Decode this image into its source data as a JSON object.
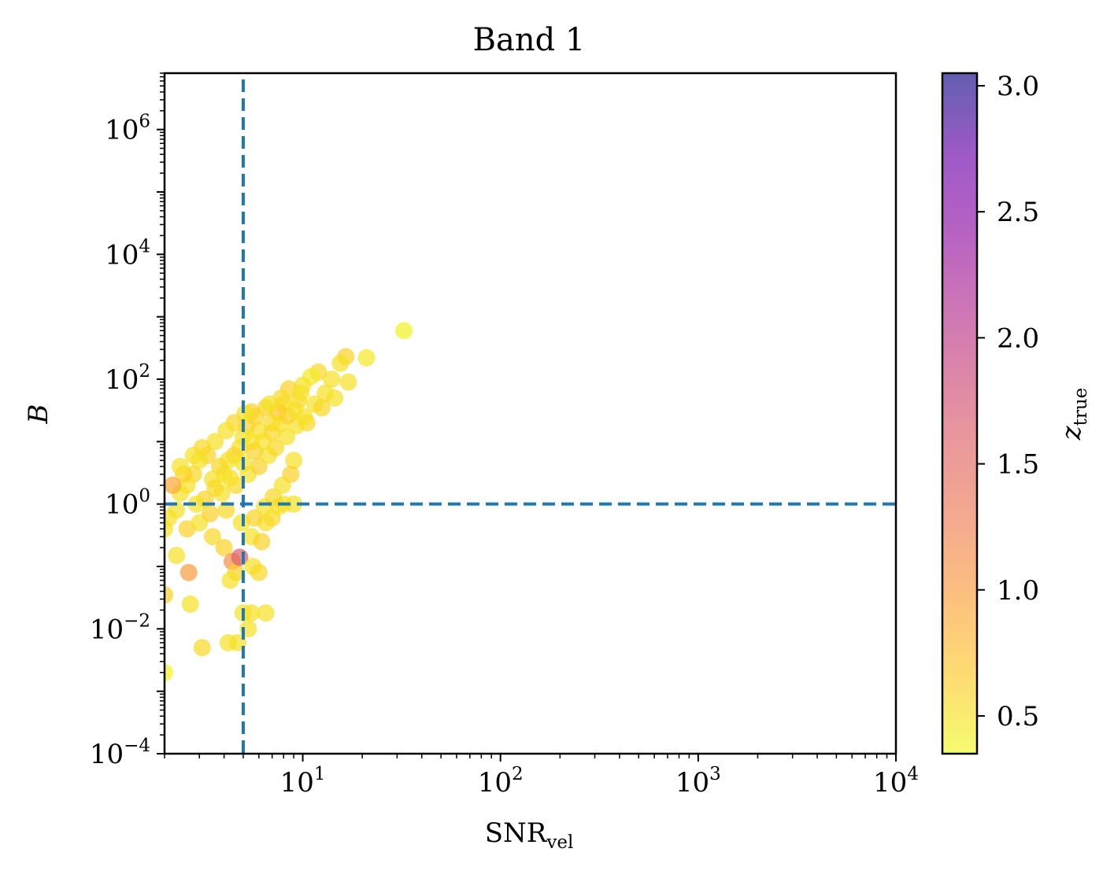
{
  "chart_data": {
    "type": "scatter",
    "title": "Band 1",
    "xlabel": {
      "base": "SNR",
      "sub": "vel"
    },
    "ylabel": "B",
    "xscale": "log",
    "yscale": "log",
    "xlim": [
      2,
      10000
    ],
    "ylim": [
      0.0001,
      8000000
    ],
    "x_ticks": [
      {
        "value": 10,
        "base": "10",
        "exp": "1"
      },
      {
        "value": 100,
        "base": "10",
        "exp": "2"
      },
      {
        "value": 1000,
        "base": "10",
        "exp": "3"
      },
      {
        "value": 10000,
        "base": "10",
        "exp": "4"
      }
    ],
    "y_ticks": [
      {
        "value": 0.0001,
        "base": "10",
        "exp": "−4"
      },
      {
        "value": 0.01,
        "base": "10",
        "exp": "−2"
      },
      {
        "value": 1,
        "base": "10",
        "exp": "0"
      },
      {
        "value": 100,
        "base": "10",
        "exp": "2"
      },
      {
        "value": 10000,
        "base": "10",
        "exp": "4"
      },
      {
        "value": 1000000,
        "base": "10",
        "exp": "6"
      }
    ],
    "reference_lines": [
      {
        "orientation": "vertical",
        "x": 5,
        "style": "dashed",
        "color": "#1f77b4"
      },
      {
        "orientation": "horizontal",
        "y": 1,
        "style": "dashed",
        "color": "#1f77b4"
      }
    ],
    "colorbar": {
      "label": {
        "base": "z",
        "sub": "true"
      },
      "range": [
        0.35,
        3.05
      ],
      "ticks": [
        "0.5",
        "1.0",
        "1.5",
        "2.0",
        "2.5",
        "3.0"
      ],
      "colormap": "plasma_r",
      "alpha": 0.7
    },
    "points": [
      [
        32.5,
        600,
        0.4
      ],
      [
        21.0,
        220,
        0.45
      ],
      [
        16.5,
        230,
        0.6
      ],
      [
        15.5,
        180,
        0.5
      ],
      [
        14.0,
        100,
        0.5
      ],
      [
        12.0,
        130,
        0.55
      ],
      [
        11.0,
        110,
        0.45
      ],
      [
        10.0,
        80,
        0.5
      ],
      [
        13.0,
        60,
        0.5
      ],
      [
        9.5,
        45,
        0.55
      ],
      [
        8.5,
        70,
        0.6
      ],
      [
        8.0,
        40,
        0.5
      ],
      [
        7.5,
        30,
        0.7
      ],
      [
        7.0,
        20,
        0.55
      ],
      [
        6.5,
        35,
        0.6
      ],
      [
        6.0,
        15,
        0.5
      ],
      [
        5.8,
        25,
        0.55
      ],
      [
        5.5,
        10,
        0.5
      ],
      [
        5.2,
        18,
        0.6
      ],
      [
        5.0,
        12,
        0.5
      ],
      [
        4.8,
        8,
        0.5
      ],
      [
        4.5,
        6,
        0.6
      ],
      [
        4.2,
        5,
        0.5
      ],
      [
        4.0,
        3,
        0.5
      ],
      [
        3.8,
        4,
        0.55
      ],
      [
        3.5,
        2.5,
        0.5
      ],
      [
        3.3,
        6,
        0.6
      ],
      [
        3.0,
        5,
        0.5
      ],
      [
        2.8,
        3,
        0.55
      ],
      [
        2.6,
        2,
        0.5
      ],
      [
        2.5,
        3,
        0.6
      ],
      [
        2.4,
        1.5,
        0.5
      ],
      [
        2.2,
        2,
        0.9
      ],
      [
        2.1,
        0.6,
        0.5
      ],
      [
        2.3,
        0.8,
        0.5
      ],
      [
        2.6,
        0.4,
        0.6
      ],
      [
        3.0,
        0.5,
        0.5
      ],
      [
        3.5,
        0.3,
        0.55
      ],
      [
        4.0,
        0.2,
        0.6
      ],
      [
        4.4,
        0.12,
        1.1
      ],
      [
        4.6,
        0.08,
        0.6
      ],
      [
        4.3,
        0.06,
        0.5
      ],
      [
        4.8,
        0.14,
        1.6
      ],
      [
        5.6,
        0.1,
        0.5
      ],
      [
        6.0,
        0.08,
        0.55
      ],
      [
        5.5,
        0.3,
        0.5
      ],
      [
        6.2,
        0.25,
        0.6
      ],
      [
        6.5,
        0.5,
        0.5
      ],
      [
        7.0,
        0.6,
        0.55
      ],
      [
        7.5,
        0.9,
        0.5
      ],
      [
        8.0,
        1.0,
        0.5
      ],
      [
        9.0,
        1.0,
        0.5
      ],
      [
        2.3,
        0.15,
        0.5
      ],
      [
        2.65,
        0.08,
        1.0
      ],
      [
        2.7,
        0.025,
        0.5
      ],
      [
        3.1,
        0.005,
        0.55
      ],
      [
        4.2,
        0.006,
        0.5
      ],
      [
        4.7,
        0.006,
        0.5
      ],
      [
        5.3,
        0.01,
        0.5
      ],
      [
        5.5,
        0.018,
        0.5
      ],
      [
        6.5,
        0.018,
        0.5
      ],
      [
        5.0,
        0.018,
        0.5
      ],
      [
        2.0,
        0.002,
        0.4
      ],
      [
        2.0,
        0.035,
        0.6
      ],
      [
        2.0,
        0.4,
        0.5
      ],
      [
        9.0,
        5,
        0.5
      ],
      [
        10.5,
        20,
        0.55
      ],
      [
        11.5,
        40,
        0.5
      ],
      [
        9.8,
        60,
        0.5
      ],
      [
        7.8,
        50,
        0.55
      ],
      [
        6.8,
        40,
        0.5
      ],
      [
        5.5,
        30,
        0.6
      ],
      [
        5.1,
        28,
        0.5
      ],
      [
        4.5,
        20,
        0.55
      ],
      [
        4.1,
        15,
        0.5
      ],
      [
        3.6,
        10,
        0.5
      ],
      [
        3.1,
        8,
        0.55
      ],
      [
        2.8,
        6,
        0.5
      ],
      [
        2.4,
        4,
        0.5
      ],
      [
        3.2,
        1.2,
        0.6
      ],
      [
        3.9,
        1.5,
        0.5
      ],
      [
        4.6,
        2.0,
        0.55
      ],
      [
        5.3,
        3.0,
        0.5
      ],
      [
        6.0,
        4.0,
        0.6
      ],
      [
        6.7,
        6.0,
        0.5
      ],
      [
        7.3,
        8.0,
        0.55
      ],
      [
        8.3,
        12.0,
        0.5
      ],
      [
        9.3,
        18.0,
        0.5
      ],
      [
        10.2,
        25.0,
        0.5
      ],
      [
        12.5,
        35.0,
        0.55
      ],
      [
        14.5,
        50.0,
        0.5
      ],
      [
        17.0,
        90.0,
        0.5
      ],
      [
        3.4,
        0.7,
        0.6
      ],
      [
        4.1,
        0.8,
        0.55
      ],
      [
        4.9,
        0.5,
        0.5
      ],
      [
        5.7,
        0.6,
        0.6
      ],
      [
        6.4,
        0.9,
        0.5
      ],
      [
        7.1,
        1.3,
        0.55
      ],
      [
        7.9,
        2.0,
        0.5
      ],
      [
        8.7,
        3.0,
        0.6
      ],
      [
        2.9,
        1.0,
        0.5
      ],
      [
        3.6,
        1.8,
        0.55
      ],
      [
        4.3,
        2.6,
        0.5
      ],
      [
        5.0,
        4.5,
        0.5
      ],
      [
        5.7,
        7.0,
        0.6
      ],
      [
        6.3,
        10.0,
        0.5
      ],
      [
        7.0,
        14.0,
        0.55
      ],
      [
        7.7,
        19.0,
        0.5
      ],
      [
        8.4,
        26.0,
        0.6
      ],
      [
        9.1,
        32.0,
        0.5
      ]
    ]
  }
}
